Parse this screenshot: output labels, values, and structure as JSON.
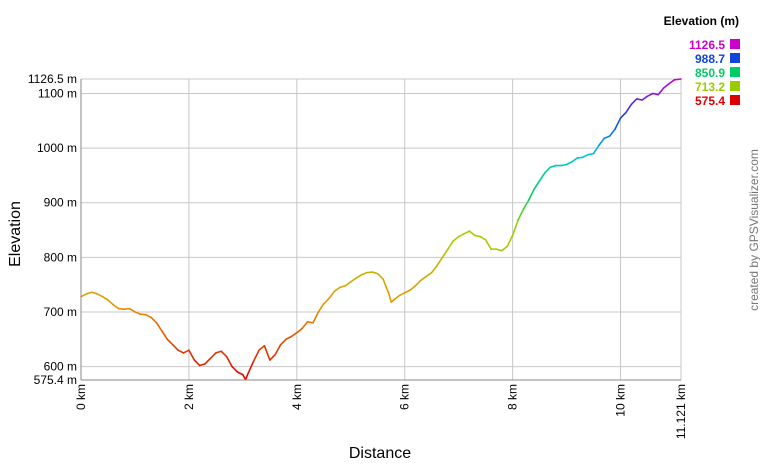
{
  "chart_data": {
    "type": "line",
    "xlabel": "Distance",
    "ylabel": "Elevation",
    "x_unit": "km",
    "y_unit": "m",
    "xlim": [
      0,
      11.121
    ],
    "ylim": [
      575.4,
      1126.5
    ],
    "x_ticks": [
      {
        "value": 0,
        "label": "0 km"
      },
      {
        "value": 2,
        "label": "2 km"
      },
      {
        "value": 4,
        "label": "4 km"
      },
      {
        "value": 6,
        "label": "6 km"
      },
      {
        "value": 8,
        "label": "8 km"
      },
      {
        "value": 10,
        "label": "10 km"
      },
      {
        "value": 11.121,
        "label": "11.121 km"
      }
    ],
    "y_ticks": [
      {
        "value": 600,
        "label": "600 m"
      },
      {
        "value": 700,
        "label": "700 m"
      },
      {
        "value": 800,
        "label": "800 m"
      },
      {
        "value": 900,
        "label": "900 m"
      },
      {
        "value": 1000,
        "label": "1000 m"
      },
      {
        "value": 1100,
        "label": "1100 m"
      }
    ],
    "y_min_label": "575.4 m",
    "y_max_label": "1126.5 m",
    "grid": true,
    "legend": {
      "title": "Elevation (m)",
      "placement": "top-right",
      "items": [
        {
          "label": "1126.5",
          "color": "#cc00cc"
        },
        {
          "label": "988.7",
          "color": "#1144dd"
        },
        {
          "label": "850.9",
          "color": "#00cc66"
        },
        {
          "label": "713.2",
          "color": "#99cc00"
        },
        {
          "label": "575.4",
          "color": "#dd0000"
        }
      ]
    },
    "series": [
      {
        "x": [
          0,
          0.1,
          0.2,
          0.3,
          0.4,
          0.5,
          0.6,
          0.7,
          0.8,
          0.9,
          1.0,
          1.1,
          1.2,
          1.3,
          1.4,
          1.5,
          1.6,
          1.7,
          1.8,
          1.9,
          2.0,
          2.1,
          2.2,
          2.3,
          2.4,
          2.5,
          2.6,
          2.7,
          2.8,
          2.9,
          3.0,
          3.05,
          3.1,
          3.2,
          3.3,
          3.4,
          3.5,
          3.6,
          3.7,
          3.8,
          3.9,
          4.0,
          4.1,
          4.2,
          4.3,
          4.4,
          4.5,
          4.6,
          4.7,
          4.8,
          4.9,
          5.0,
          5.1,
          5.2,
          5.3,
          5.4,
          5.5,
          5.6,
          5.7,
          5.75,
          5.8,
          5.9,
          6.0,
          6.1,
          6.2,
          6.3,
          6.4,
          6.5,
          6.6,
          6.7,
          6.8,
          6.9,
          7.0,
          7.1,
          7.2,
          7.3,
          7.4,
          7.5,
          7.6,
          7.7,
          7.8,
          7.9,
          8.0,
          8.1,
          8.2,
          8.3,
          8.4,
          8.5,
          8.6,
          8.7,
          8.8,
          8.9,
          9.0,
          9.1,
          9.2,
          9.3,
          9.4,
          9.5,
          9.6,
          9.7,
          9.8,
          9.9,
          10.0,
          10.1,
          10.2,
          10.3,
          10.4,
          10.5,
          10.6,
          10.7,
          10.8,
          10.9,
          11.0,
          11.121
        ],
        "y": [
          728,
          733,
          736,
          733,
          728,
          722,
          713,
          706,
          705,
          706,
          700,
          696,
          695,
          690,
          680,
          665,
          650,
          640,
          630,
          625,
          630,
          612,
          602,
          605,
          615,
          625,
          628,
          618,
          600,
          590,
          585,
          576,
          588,
          610,
          630,
          638,
          612,
          622,
          640,
          650,
          655,
          662,
          670,
          682,
          680,
          700,
          715,
          725,
          738,
          745,
          748,
          755,
          762,
          768,
          772,
          773,
          770,
          760,
          735,
          718,
          722,
          730,
          735,
          740,
          748,
          758,
          765,
          772,
          785,
          800,
          815,
          830,
          838,
          843,
          848,
          840,
          838,
          832,
          815,
          815,
          812,
          820,
          840,
          868,
          888,
          905,
          925,
          940,
          955,
          965,
          968,
          968,
          970,
          975,
          982,
          983,
          988,
          990,
          1005,
          1018,
          1022,
          1035,
          1055,
          1065,
          1080,
          1090,
          1088,
          1095,
          1100,
          1098,
          1110,
          1118,
          1125,
          1126.5
        ]
      }
    ],
    "side_text": "created by GPSVisualizer.com"
  }
}
